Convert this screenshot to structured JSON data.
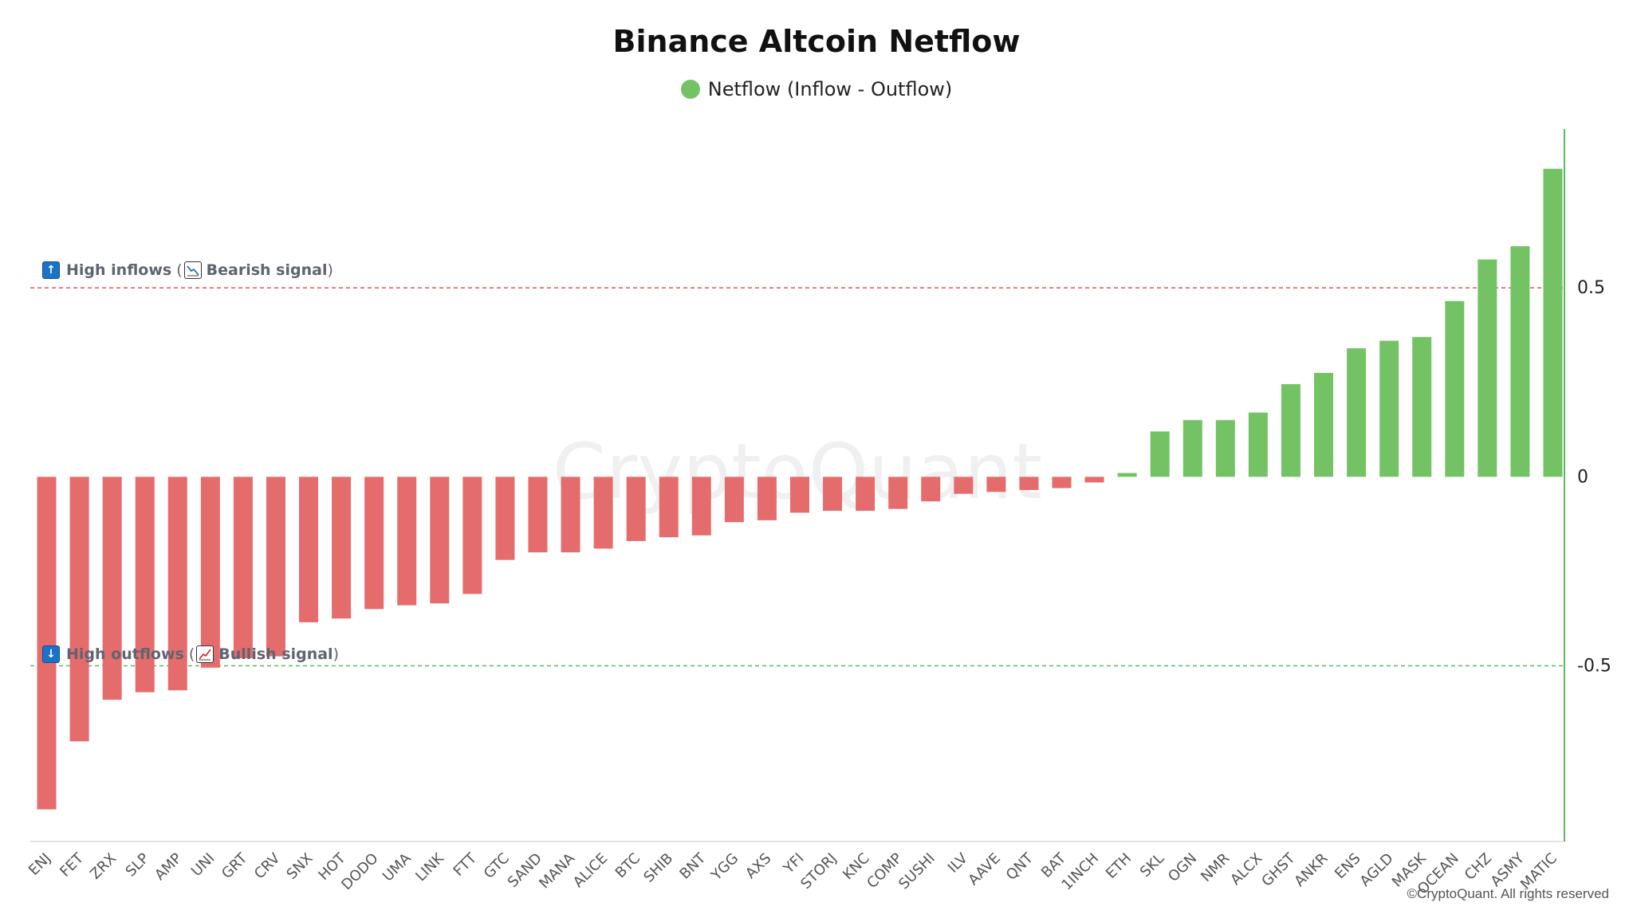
{
  "chart_data": {
    "type": "bar",
    "title": "Binance Altcoin Netflow",
    "series": [
      {
        "name": "Netflow (Inflow - Outflow)"
      }
    ],
    "categories": [
      "ENJ",
      "FET",
      "ZRX",
      "SLP",
      "AMP",
      "UNI",
      "GRT",
      "CRV",
      "SNX",
      "HOT",
      "DODO",
      "UMA",
      "LINK",
      "FTT",
      "GTC",
      "SAND",
      "MANA",
      "ALICE",
      "BTC",
      "SHIB",
      "BNT",
      "YGG",
      "AXS",
      "YFI",
      "STORJ",
      "KNC",
      "COMP",
      "SUSHI",
      "ILV",
      "AAVE",
      "QNT",
      "BAT",
      "1INCH",
      "ETH",
      "SKL",
      "OGN",
      "NMR",
      "ALCX",
      "GHST",
      "ANKR",
      "ENS",
      "AGLD",
      "MASK",
      "OCEAN",
      "CHZ",
      "ASMY",
      "MATIC"
    ],
    "values": [
      -0.88,
      -0.7,
      -0.59,
      -0.57,
      -0.565,
      -0.505,
      -0.48,
      -0.475,
      -0.385,
      -0.375,
      -0.35,
      -0.34,
      -0.335,
      -0.31,
      -0.22,
      -0.2,
      -0.2,
      -0.19,
      -0.17,
      -0.16,
      -0.155,
      -0.12,
      -0.115,
      -0.095,
      -0.09,
      -0.09,
      -0.085,
      -0.065,
      -0.045,
      -0.04,
      -0.035,
      -0.03,
      -0.015,
      0.01,
      0.12,
      0.15,
      0.15,
      0.17,
      0.245,
      0.275,
      0.34,
      0.36,
      0.37,
      0.465,
      0.575,
      0.61,
      0.815
    ],
    "y_ticks": [
      "0.5",
      "0",
      "-0.5"
    ],
    "ylim": [
      -0.965,
      0.92
    ],
    "y_axis_side": "right",
    "reference_lines": [
      {
        "value": 0.5,
        "color": "#e05555",
        "icon": "up-arrow-icon",
        "label": "High inflows",
        "signal": "Bearish signal"
      },
      {
        "value": -0.5,
        "color": "#5cb85c",
        "icon": "down-arrow-icon",
        "label": "High outflows",
        "signal": "Bullish signal"
      }
    ],
    "colors": {
      "positive": "#73c365",
      "negative": "#e56c6c",
      "axis": "#5cb85c",
      "baseline": "#d8d8d8"
    },
    "watermark": "CryptoQuant"
  },
  "copyright": "©CryptoQuant. All rights reserved"
}
